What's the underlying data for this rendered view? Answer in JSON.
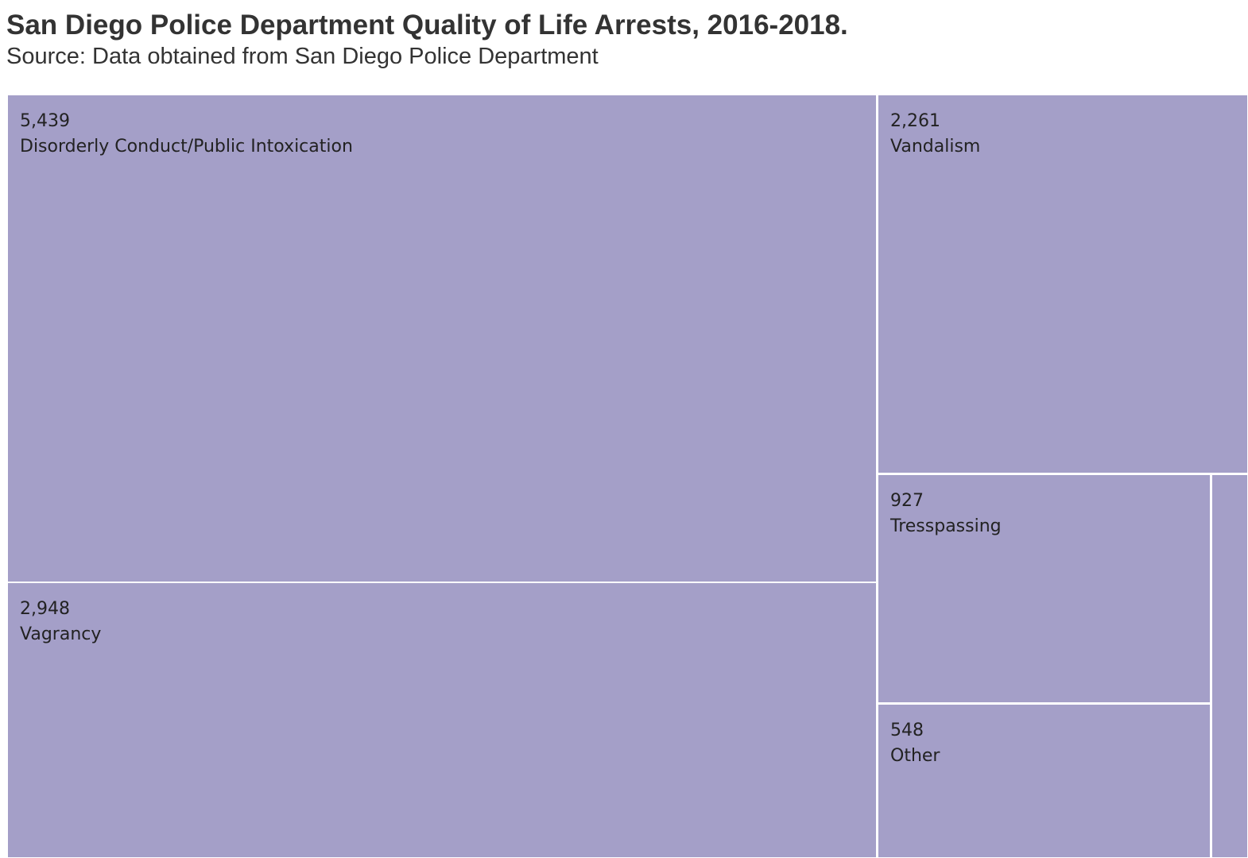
{
  "title": "San Diego Police Department Quality of Life Arrests, 2016-2018.",
  "subtitle": "Source: Data obtained from San Diego Police Department",
  "colors": {
    "cell": "#a49fc8",
    "border": "#ffffff",
    "text": "#222222"
  },
  "chart_data": {
    "type": "treemap",
    "items": [
      {
        "label": "Disorderly Conduct/Public Intoxication",
        "value": 5439,
        "value_text": "5,439"
      },
      {
        "label": "Vagrancy",
        "value": 2948,
        "value_text": "2,948"
      },
      {
        "label": "Vandalism",
        "value": 2261,
        "value_text": "2,261"
      },
      {
        "label": "Tresspassing",
        "value": 927,
        "value_text": "927"
      },
      {
        "label": "Other",
        "value": 548,
        "value_text": "548"
      }
    ]
  }
}
